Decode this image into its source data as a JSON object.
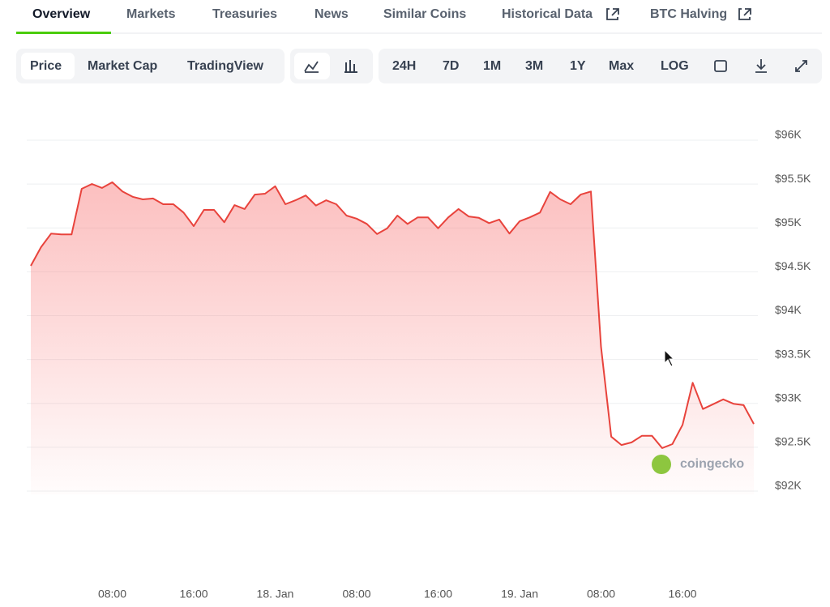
{
  "tabs": [
    "Overview",
    "Markets",
    "Treasuries",
    "News",
    "Similar Coins",
    "Historical Data",
    "BTC Halving"
  ],
  "chart_modes": [
    "Price",
    "Market Cap",
    "TradingView"
  ],
  "ranges": [
    "24H",
    "7D",
    "1M",
    "3M",
    "1Y",
    "Max",
    "LOG"
  ],
  "watermark": "coingecko",
  "chart_data": {
    "type": "line",
    "categories": [
      null,
      null,
      null,
      null,
      null,
      null,
      null,
      null,
      "08:00",
      null,
      null,
      null,
      null,
      null,
      null,
      null,
      "16:00",
      null,
      null,
      null,
      null,
      null,
      null,
      null,
      "18. Jan",
      null,
      null,
      null,
      null,
      null,
      null,
      null,
      "08:00",
      null,
      null,
      null,
      null,
      null,
      null,
      null,
      "16:00",
      null,
      null,
      null,
      null,
      null,
      null,
      null,
      "19. Jan",
      null,
      null,
      null,
      null,
      null,
      null,
      null,
      "08:00",
      null,
      null,
      null,
      null,
      null,
      null,
      null,
      "16:00",
      null,
      null,
      null,
      null,
      null,
      null,
      null
    ],
    "values": [
      94513,
      94725,
      94880,
      94870,
      94870,
      95390,
      95446,
      95400,
      95465,
      95360,
      95300,
      95270,
      95280,
      95215,
      95215,
      95120,
      94965,
      95150,
      95150,
      95010,
      95205,
      95160,
      95325,
      95335,
      95420,
      95215,
      95260,
      95315,
      95200,
      95260,
      95215,
      95085,
      95050,
      94990,
      94875,
      94940,
      95085,
      94990,
      95065,
      95065,
      94940,
      95065,
      95160,
      95075,
      95060,
      95000,
      95040,
      94880,
      95020,
      95065,
      95120,
      95355,
      95270,
      95215,
      95325,
      95360,
      93590,
      92565,
      92470,
      92500,
      92575,
      92575,
      92435,
      92480,
      92700,
      93180,
      92880,
      92935,
      92990,
      92940,
      92925,
      92710
    ],
    "color": "#e8433c",
    "ylim": [
      92000,
      96000
    ],
    "yticks": [
      {
        "value": 92000,
        "label": "$92K"
      },
      {
        "value": 92500,
        "label": "$92.5K"
      },
      {
        "value": 93000,
        "label": "$93K"
      },
      {
        "value": 93500,
        "label": "$93.5K"
      },
      {
        "value": 94000,
        "label": "$94K"
      },
      {
        "value": 94500,
        "label": "$94.5K"
      },
      {
        "value": 95000,
        "label": "$95K"
      },
      {
        "value": 95500,
        "label": "$95.5K"
      },
      {
        "value": 96000,
        "label": "$96K"
      }
    ],
    "grid": true
  }
}
